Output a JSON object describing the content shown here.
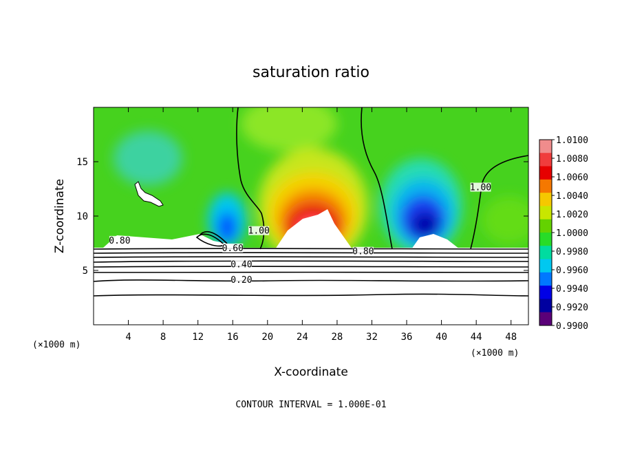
{
  "chart_data": {
    "type": "heatmap",
    "title": "saturation ratio",
    "xlabel": "X-coordinate",
    "ylabel": "Z-coordinate",
    "x_unit": "(×1000 m)",
    "xlim": [
      0,
      50
    ],
    "ylim": [
      0,
      20
    ],
    "x_ticks": [
      4,
      8,
      12,
      16,
      20,
      24,
      28,
      32,
      36,
      40,
      44,
      48
    ],
    "y_ticks": [
      5,
      10,
      15
    ],
    "colorbar": {
      "levels": [
        "1.0100",
        "1.0080",
        "1.0060",
        "1.0040",
        "1.0020",
        "1.0000",
        "0.9980",
        "0.9960",
        "0.9940",
        "0.9920",
        "0.9900"
      ],
      "colors": [
        "#f08c8c",
        "#f03c3c",
        "#e60000",
        "#f57800",
        "#f5c800",
        "#c8e600",
        "#64d200",
        "#28dc28",
        "#00dca0",
        "#00c8f0",
        "#0078ff",
        "#0000e6",
        "#0000a0",
        "#5a0078"
      ]
    },
    "contour_labels": [
      {
        "text": "0.80",
        "x": 3.0,
        "y": 7.6
      },
      {
        "text": "0.60",
        "x": 16.0,
        "y": 6.9
      },
      {
        "text": "0.40",
        "x": 17.0,
        "y": 5.4
      },
      {
        "text": "0.20",
        "x": 17.0,
        "y": 4.0
      },
      {
        "text": "1.00",
        "x": 19.0,
        "y": 8.5
      },
      {
        "text": "0.80",
        "x": 31.0,
        "y": 6.6
      },
      {
        "text": "1.00",
        "x": 44.5,
        "y": 12.5
      }
    ],
    "footer": "CONTOUR INTERVAL = 1.000E-01"
  }
}
